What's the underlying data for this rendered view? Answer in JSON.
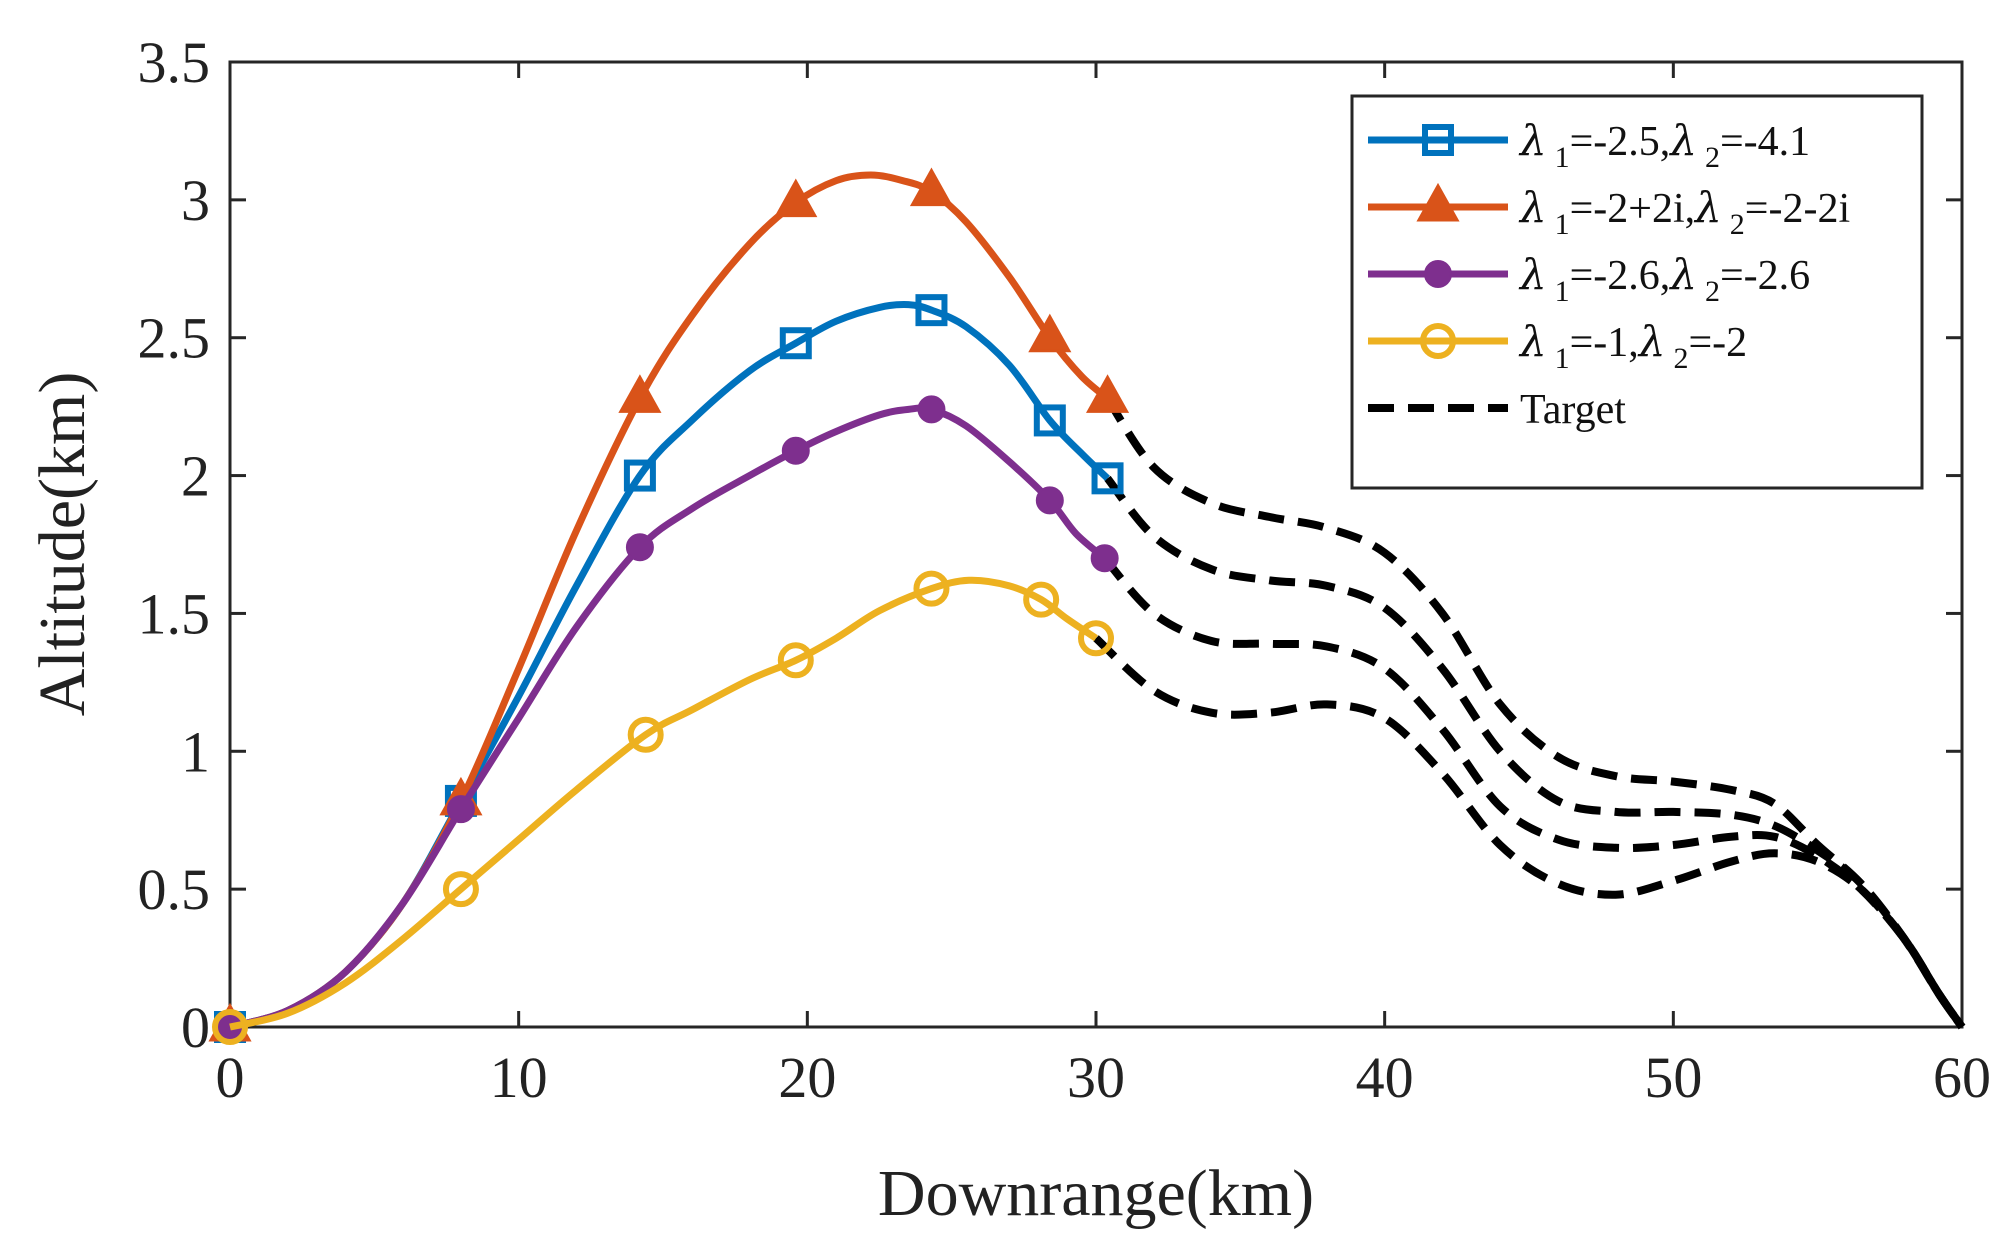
{
  "chart_data": {
    "type": "line",
    "title": "",
    "xlabel": "Downrange(km)",
    "ylabel": "Altitude(km)",
    "xlim": [
      0,
      60
    ],
    "ylim": [
      0,
      3.5
    ],
    "xticks": [
      0,
      10,
      20,
      30,
      40,
      50,
      60
    ],
    "yticks": [
      0,
      0.5,
      1,
      1.5,
      2,
      2.5,
      3,
      3.5
    ],
    "xtick_labels": [
      "0",
      "10",
      "20",
      "30",
      "40",
      "50",
      "60"
    ],
    "ytick_labels": [
      "0",
      "0.5",
      "1",
      "1.5",
      "2",
      "2.5",
      "3",
      "3.5"
    ],
    "grid": false,
    "legend_position": "top-right",
    "series": [
      {
        "name": "λ1=-2.5,λ2=-4.1",
        "legend": {
          "l1": "λ",
          "s1": "1",
          "t1": "=-2.5,",
          "l2": "λ",
          "s2": "2",
          "t2": "=-4.1"
        },
        "color": "#0072BD",
        "marker": "square",
        "curve": [
          [
            0,
            0
          ],
          [
            2,
            0.06
          ],
          [
            4,
            0.2
          ],
          [
            6,
            0.45
          ],
          [
            8,
            0.82
          ],
          [
            10,
            1.2
          ],
          [
            12,
            1.6
          ],
          [
            14.2,
            2.0
          ],
          [
            16,
            2.2
          ],
          [
            18,
            2.38
          ],
          [
            19.6,
            2.48
          ],
          [
            21,
            2.56
          ],
          [
            22.5,
            2.61
          ],
          [
            23.5,
            2.62
          ],
          [
            24.3,
            2.6
          ],
          [
            25.5,
            2.54
          ],
          [
            27,
            2.4
          ],
          [
            28.4,
            2.2
          ],
          [
            29.5,
            2.08
          ],
          [
            30.4,
            1.99
          ]
        ],
        "markers": [
          [
            0,
            0
          ],
          [
            8,
            0.82
          ],
          [
            14.2,
            2.0
          ],
          [
            19.6,
            2.48
          ],
          [
            24.3,
            2.6
          ],
          [
            28.4,
            2.2
          ],
          [
            30.4,
            1.99
          ]
        ]
      },
      {
        "name": "λ1=-2+2i,λ2=-2-2i",
        "legend": {
          "l1": "λ",
          "s1": "1",
          "t1": "=-2+2i,",
          "l2": "λ",
          "s2": "2",
          "t2": "=-2-2i"
        },
        "color": "#D95319",
        "marker": "triangle",
        "curve": [
          [
            0,
            0
          ],
          [
            2,
            0.06
          ],
          [
            4,
            0.2
          ],
          [
            6,
            0.45
          ],
          [
            8,
            0.82
          ],
          [
            10,
            1.3
          ],
          [
            12,
            1.8
          ],
          [
            14.2,
            2.28
          ],
          [
            16,
            2.58
          ],
          [
            18,
            2.84
          ],
          [
            19.6,
            2.99
          ],
          [
            21,
            3.07
          ],
          [
            22.2,
            3.09
          ],
          [
            23.3,
            3.07
          ],
          [
            24.3,
            3.03
          ],
          [
            25.5,
            2.92
          ],
          [
            27,
            2.72
          ],
          [
            28.4,
            2.5
          ],
          [
            29.5,
            2.36
          ],
          [
            30.4,
            2.28
          ]
        ],
        "markers": [
          [
            0,
            0
          ],
          [
            8,
            0.82
          ],
          [
            14.2,
            2.28
          ],
          [
            19.6,
            2.99
          ],
          [
            24.3,
            3.03
          ],
          [
            28.4,
            2.5
          ],
          [
            30.4,
            2.28
          ]
        ]
      },
      {
        "name": "λ1=-2.6,λ2=-2.6",
        "legend": {
          "l1": "λ",
          "s1": "1",
          "t1": "=-2.6,",
          "l2": "λ",
          "s2": "2",
          "t2": "=-2.6"
        },
        "color": "#7E2F8E",
        "marker": "dot",
        "curve": [
          [
            0,
            0
          ],
          [
            2,
            0.06
          ],
          [
            4,
            0.2
          ],
          [
            6,
            0.45
          ],
          [
            8,
            0.79
          ],
          [
            10,
            1.12
          ],
          [
            12,
            1.45
          ],
          [
            14.2,
            1.74
          ],
          [
            16,
            1.88
          ],
          [
            18,
            2.0
          ],
          [
            19.6,
            2.09
          ],
          [
            21,
            2.16
          ],
          [
            22.5,
            2.22
          ],
          [
            23.5,
            2.24
          ],
          [
            24.3,
            2.24
          ],
          [
            25.5,
            2.18
          ],
          [
            27,
            2.05
          ],
          [
            28.4,
            1.91
          ],
          [
            29.3,
            1.79
          ],
          [
            30.3,
            1.7
          ]
        ],
        "markers": [
          [
            0,
            0
          ],
          [
            8,
            0.79
          ],
          [
            14.2,
            1.74
          ],
          [
            19.6,
            2.09
          ],
          [
            24.3,
            2.24
          ],
          [
            28.4,
            1.91
          ],
          [
            30.3,
            1.7
          ]
        ]
      },
      {
        "name": "λ1=-1,λ2=-2",
        "legend": {
          "l1": "λ",
          "s1": "1",
          "t1": "=-1,",
          "l2": "λ",
          "s2": "2",
          "t2": "=-2"
        },
        "color": "#EDB120",
        "marker": "circle",
        "curve": [
          [
            0,
            0
          ],
          [
            2,
            0.05
          ],
          [
            4,
            0.16
          ],
          [
            6,
            0.32
          ],
          [
            8,
            0.5
          ],
          [
            10,
            0.68
          ],
          [
            12,
            0.86
          ],
          [
            14.4,
            1.06
          ],
          [
            16,
            1.15
          ],
          [
            18,
            1.26
          ],
          [
            19.6,
            1.33
          ],
          [
            21,
            1.41
          ],
          [
            22.5,
            1.51
          ],
          [
            24.3,
            1.59
          ],
          [
            25.6,
            1.62
          ],
          [
            27,
            1.6
          ],
          [
            28.1,
            1.55
          ],
          [
            29,
            1.48
          ],
          [
            30,
            1.41
          ]
        ],
        "markers": [
          [
            0,
            0
          ],
          [
            8,
            0.5
          ],
          [
            14.4,
            1.06
          ],
          [
            19.6,
            1.33
          ],
          [
            24.3,
            1.59
          ],
          [
            28.1,
            1.55
          ],
          [
            30,
            1.41
          ]
        ]
      },
      {
        "name": "Target",
        "legend": {
          "label": "Target"
        },
        "color": "#000000",
        "marker": "none",
        "dashed": true,
        "curves": [
          [
            [
              30.4,
              2.28
            ],
            [
              32,
              2.03
            ],
            [
              34,
              1.9
            ],
            [
              36,
              1.85
            ],
            [
              38,
              1.81
            ],
            [
              40,
              1.72
            ],
            [
              42,
              1.5
            ],
            [
              44,
              1.17
            ],
            [
              46,
              0.98
            ],
            [
              48,
              0.91
            ],
            [
              50,
              0.89
            ],
            [
              52,
              0.86
            ],
            [
              53.5,
              0.81
            ],
            [
              55,
              0.66
            ],
            [
              56.5,
              0.52
            ],
            [
              58,
              0.32
            ],
            [
              59.2,
              0.12
            ],
            [
              60,
              0
            ]
          ],
          [
            [
              30.4,
              1.99
            ],
            [
              32,
              1.78
            ],
            [
              34,
              1.66
            ],
            [
              36,
              1.62
            ],
            [
              38,
              1.6
            ],
            [
              40,
              1.52
            ],
            [
              42,
              1.3
            ],
            [
              44,
              1.0
            ],
            [
              46,
              0.82
            ],
            [
              48,
              0.78
            ],
            [
              50,
              0.78
            ],
            [
              52,
              0.77
            ],
            [
              53.5,
              0.73
            ],
            [
              55,
              0.64
            ],
            [
              56.5,
              0.52
            ],
            [
              58,
              0.32
            ],
            [
              59.2,
              0.12
            ],
            [
              60,
              0
            ]
          ],
          [
            [
              30.3,
              1.7
            ],
            [
              32,
              1.5
            ],
            [
              34,
              1.4
            ],
            [
              36,
              1.39
            ],
            [
              38,
              1.38
            ],
            [
              40,
              1.3
            ],
            [
              42,
              1.08
            ],
            [
              44,
              0.8
            ],
            [
              46,
              0.68
            ],
            [
              48,
              0.65
            ],
            [
              50,
              0.66
            ],
            [
              52,
              0.69
            ],
            [
              53.5,
              0.69
            ],
            [
              55,
              0.62
            ],
            [
              56.5,
              0.5
            ],
            [
              58,
              0.32
            ],
            [
              59.2,
              0.12
            ],
            [
              60,
              0
            ]
          ],
          [
            [
              30,
              1.41
            ],
            [
              32,
              1.22
            ],
            [
              34,
              1.14
            ],
            [
              36,
              1.14
            ],
            [
              38,
              1.17
            ],
            [
              40,
              1.12
            ],
            [
              42,
              0.92
            ],
            [
              44,
              0.66
            ],
            [
              46,
              0.52
            ],
            [
              48,
              0.48
            ],
            [
              50,
              0.53
            ],
            [
              52,
              0.6
            ],
            [
              53.5,
              0.63
            ],
            [
              55,
              0.6
            ],
            [
              56.5,
              0.5
            ],
            [
              58,
              0.32
            ],
            [
              59.2,
              0.12
            ],
            [
              60,
              0
            ]
          ]
        ]
      }
    ]
  }
}
